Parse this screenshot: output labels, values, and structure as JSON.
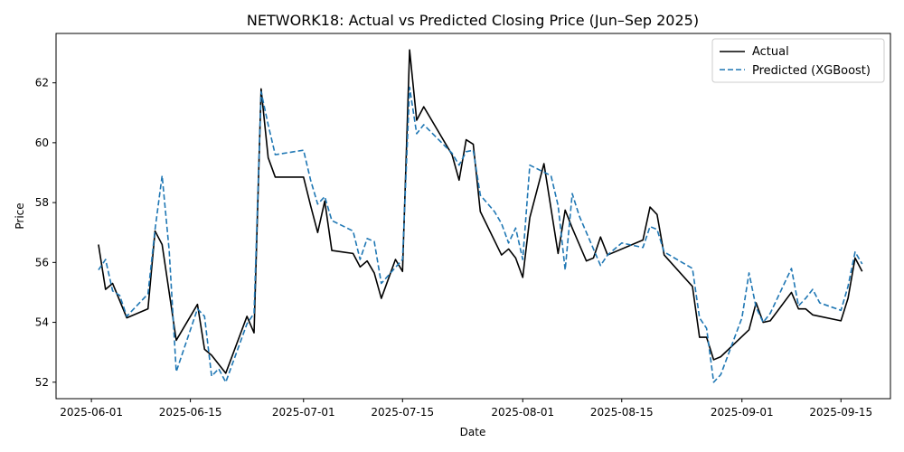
{
  "chart_data": {
    "type": "line",
    "title": "NETWORK18: Actual vs Predicted Closing Price (Jun–Sep 2025)",
    "xlabel": "Date",
    "ylabel": "Price",
    "xlim": [
      "2025-05-27",
      "2025-09-22"
    ],
    "ylim": [
      51.45,
      63.65
    ],
    "x_ticks": [
      "2025-06-01",
      "2025-06-15",
      "2025-07-01",
      "2025-07-15",
      "2025-08-01",
      "2025-08-15",
      "2025-09-01",
      "2025-09-15"
    ],
    "y_ticks": [
      52,
      54,
      56,
      58,
      60,
      62
    ],
    "legend": {
      "position": "top-right",
      "entries": [
        "Actual",
        "Predicted (XGBoost)"
      ]
    },
    "grid": false,
    "series": [
      {
        "name": "Actual",
        "color": "#000000",
        "style": "solid",
        "points": [
          [
            "2025-06-02",
            56.6
          ],
          [
            "2025-06-03",
            55.1
          ],
          [
            "2025-06-04",
            55.3
          ],
          [
            "2025-06-06",
            54.15
          ],
          [
            "2025-06-09",
            54.45
          ],
          [
            "2025-06-10",
            57.05
          ],
          [
            "2025-06-11",
            56.6
          ],
          [
            "2025-06-13",
            53.4
          ],
          [
            "2025-06-16",
            54.6
          ],
          [
            "2025-06-17",
            53.1
          ],
          [
            "2025-06-18",
            52.9
          ],
          [
            "2025-06-20",
            52.3
          ],
          [
            "2025-06-23",
            54.2
          ],
          [
            "2025-06-24",
            53.65
          ],
          [
            "2025-06-25",
            61.8
          ],
          [
            "2025-06-26",
            59.5
          ],
          [
            "2025-06-27",
            58.85
          ],
          [
            "2025-06-30",
            58.85
          ],
          [
            "2025-07-01",
            58.85
          ],
          [
            "2025-07-02",
            57.9
          ],
          [
            "2025-07-03",
            57.0
          ],
          [
            "2025-07-04",
            58.05
          ],
          [
            "2025-07-05",
            56.4
          ],
          [
            "2025-07-08",
            56.3
          ],
          [
            "2025-07-09",
            55.85
          ],
          [
            "2025-07-10",
            56.05
          ],
          [
            "2025-07-11",
            55.65
          ],
          [
            "2025-07-12",
            54.8
          ],
          [
            "2025-07-14",
            56.1
          ],
          [
            "2025-07-15",
            55.7
          ],
          [
            "2025-07-16",
            63.1
          ],
          [
            "2025-07-17",
            60.75
          ],
          [
            "2025-07-18",
            61.2
          ],
          [
            "2025-07-22",
            59.6
          ],
          [
            "2025-07-23",
            58.75
          ],
          [
            "2025-07-24",
            60.1
          ],
          [
            "2025-07-25",
            59.95
          ],
          [
            "2025-07-26",
            57.7
          ],
          [
            "2025-07-29",
            56.25
          ],
          [
            "2025-07-30",
            56.45
          ],
          [
            "2025-07-31",
            56.15
          ],
          [
            "2025-08-01",
            55.5
          ],
          [
            "2025-08-02",
            57.5
          ],
          [
            "2025-08-04",
            59.3
          ],
          [
            "2025-08-06",
            56.3
          ],
          [
            "2025-08-07",
            57.75
          ],
          [
            "2025-08-08",
            57.15
          ],
          [
            "2025-08-10",
            56.05
          ],
          [
            "2025-08-11",
            56.15
          ],
          [
            "2025-08-12",
            56.85
          ],
          [
            "2025-08-13",
            56.25
          ],
          [
            "2025-08-18",
            56.75
          ],
          [
            "2025-08-19",
            57.85
          ],
          [
            "2025-08-20",
            57.6
          ],
          [
            "2025-08-21",
            56.25
          ],
          [
            "2025-08-25",
            55.2
          ],
          [
            "2025-08-26",
            53.5
          ],
          [
            "2025-08-27",
            53.5
          ],
          [
            "2025-08-28",
            52.75
          ],
          [
            "2025-08-29",
            52.85
          ],
          [
            "2025-09-02",
            53.75
          ],
          [
            "2025-09-03",
            54.65
          ],
          [
            "2025-09-04",
            54.0
          ],
          [
            "2025-09-05",
            54.05
          ],
          [
            "2025-09-08",
            55.0
          ],
          [
            "2025-09-09",
            54.45
          ],
          [
            "2025-09-10",
            54.45
          ],
          [
            "2025-09-11",
            54.25
          ],
          [
            "2025-09-15",
            54.05
          ],
          [
            "2025-09-16",
            54.8
          ],
          [
            "2025-09-17",
            56.15
          ],
          [
            "2025-09-18",
            55.7
          ]
        ]
      },
      {
        "name": "Predicted (XGBoost)",
        "color": "#1f77b4",
        "style": "dashed",
        "points": [
          [
            "2025-06-02",
            55.75
          ],
          [
            "2025-06-03",
            56.1
          ],
          [
            "2025-06-04",
            55.05
          ],
          [
            "2025-06-05",
            54.9
          ],
          [
            "2025-06-06",
            54.2
          ],
          [
            "2025-06-09",
            54.95
          ],
          [
            "2025-06-10",
            57.1
          ],
          [
            "2025-06-11",
            58.9
          ],
          [
            "2025-06-12",
            56.4
          ],
          [
            "2025-06-13",
            52.35
          ],
          [
            "2025-06-16",
            54.45
          ],
          [
            "2025-06-17",
            54.2
          ],
          [
            "2025-06-18",
            52.2
          ],
          [
            "2025-06-19",
            52.45
          ],
          [
            "2025-06-20",
            52.0
          ],
          [
            "2025-06-23",
            53.95
          ],
          [
            "2025-06-24",
            54.3
          ],
          [
            "2025-06-25",
            61.7
          ],
          [
            "2025-06-26",
            60.6
          ],
          [
            "2025-06-27",
            59.6
          ],
          [
            "2025-07-01",
            59.75
          ],
          [
            "2025-07-02",
            58.75
          ],
          [
            "2025-07-03",
            57.95
          ],
          [
            "2025-07-04",
            58.2
          ],
          [
            "2025-07-05",
            57.4
          ],
          [
            "2025-07-08",
            57.05
          ],
          [
            "2025-07-09",
            56.1
          ],
          [
            "2025-07-10",
            56.8
          ],
          [
            "2025-07-11",
            56.7
          ],
          [
            "2025-07-12",
            55.3
          ],
          [
            "2025-07-15",
            56.1
          ],
          [
            "2025-07-16",
            61.85
          ],
          [
            "2025-07-17",
            60.3
          ],
          [
            "2025-07-18",
            60.6
          ],
          [
            "2025-07-22",
            59.65
          ],
          [
            "2025-07-23",
            59.25
          ],
          [
            "2025-07-24",
            59.7
          ],
          [
            "2025-07-25",
            59.75
          ],
          [
            "2025-07-26",
            58.25
          ],
          [
            "2025-07-28",
            57.7
          ],
          [
            "2025-07-29",
            57.3
          ],
          [
            "2025-07-30",
            56.65
          ],
          [
            "2025-07-31",
            57.15
          ],
          [
            "2025-08-01",
            56.1
          ],
          [
            "2025-08-02",
            59.25
          ],
          [
            "2025-08-05",
            58.9
          ],
          [
            "2025-08-06",
            57.9
          ],
          [
            "2025-08-07",
            55.75
          ],
          [
            "2025-08-08",
            58.3
          ],
          [
            "2025-08-09",
            57.55
          ],
          [
            "2025-08-12",
            55.9
          ],
          [
            "2025-08-13",
            56.25
          ],
          [
            "2025-08-15",
            56.65
          ],
          [
            "2025-08-18",
            56.5
          ],
          [
            "2025-08-19",
            57.2
          ],
          [
            "2025-08-20",
            57.1
          ],
          [
            "2025-08-21",
            56.35
          ],
          [
            "2025-08-25",
            55.8
          ],
          [
            "2025-08-26",
            54.15
          ],
          [
            "2025-08-27",
            53.8
          ],
          [
            "2025-08-28",
            52.0
          ],
          [
            "2025-08-29",
            52.25
          ],
          [
            "2025-09-01",
            54.15
          ],
          [
            "2025-09-02",
            55.65
          ],
          [
            "2025-09-03",
            54.5
          ],
          [
            "2025-09-04",
            54.0
          ],
          [
            "2025-09-05",
            54.3
          ],
          [
            "2025-09-08",
            55.8
          ],
          [
            "2025-09-09",
            54.55
          ],
          [
            "2025-09-10",
            54.8
          ],
          [
            "2025-09-11",
            55.1
          ],
          [
            "2025-09-12",
            54.65
          ],
          [
            "2025-09-15",
            54.4
          ],
          [
            "2025-09-16",
            55.2
          ],
          [
            "2025-09-17",
            56.35
          ],
          [
            "2025-09-18",
            55.95
          ]
        ]
      }
    ]
  }
}
